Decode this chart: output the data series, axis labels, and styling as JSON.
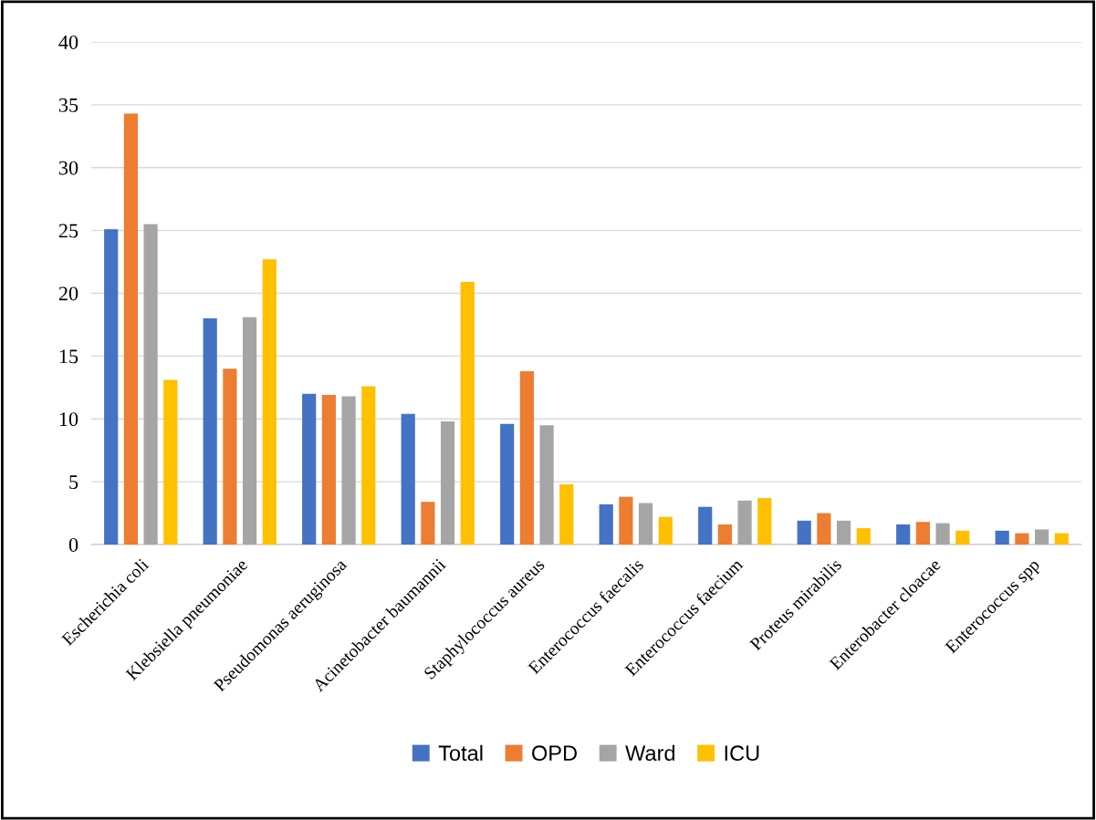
{
  "chart_data": {
    "type": "bar",
    "categories": [
      "Escherichia coli",
      "Klebsiella pneumoniae",
      "Pseudomonas aeruginosa",
      "Acinetobacter baumannii",
      "Staphylococcus aureus",
      "Enterococcus faecalis",
      "Enterococcus faecium",
      "Proteus mirabilis",
      "Enterobacter cloacae",
      "Enterococcus spp"
    ],
    "series": [
      {
        "name": "Total",
        "color": "#4472c4",
        "values": [
          25.1,
          18.0,
          12.0,
          10.4,
          9.6,
          3.2,
          3.0,
          1.9,
          1.6,
          1.1
        ]
      },
      {
        "name": "OPD",
        "color": "#ed7d31",
        "values": [
          34.3,
          14.0,
          11.9,
          3.4,
          13.8,
          3.8,
          1.6,
          2.5,
          1.8,
          0.9
        ]
      },
      {
        "name": "Ward",
        "color": "#a5a5a5",
        "values": [
          25.5,
          18.1,
          11.8,
          9.8,
          9.5,
          3.3,
          3.5,
          1.9,
          1.7,
          1.2
        ]
      },
      {
        "name": "ICU",
        "color": "#ffc000",
        "values": [
          13.1,
          22.7,
          12.6,
          20.9,
          4.8,
          2.2,
          3.7,
          1.3,
          1.1,
          0.9
        ]
      }
    ],
    "ylim": [
      0,
      40
    ],
    "yticks": [
      0,
      5,
      10,
      15,
      20,
      25,
      30,
      35,
      40
    ],
    "grid": "y",
    "legend": "bottom"
  }
}
